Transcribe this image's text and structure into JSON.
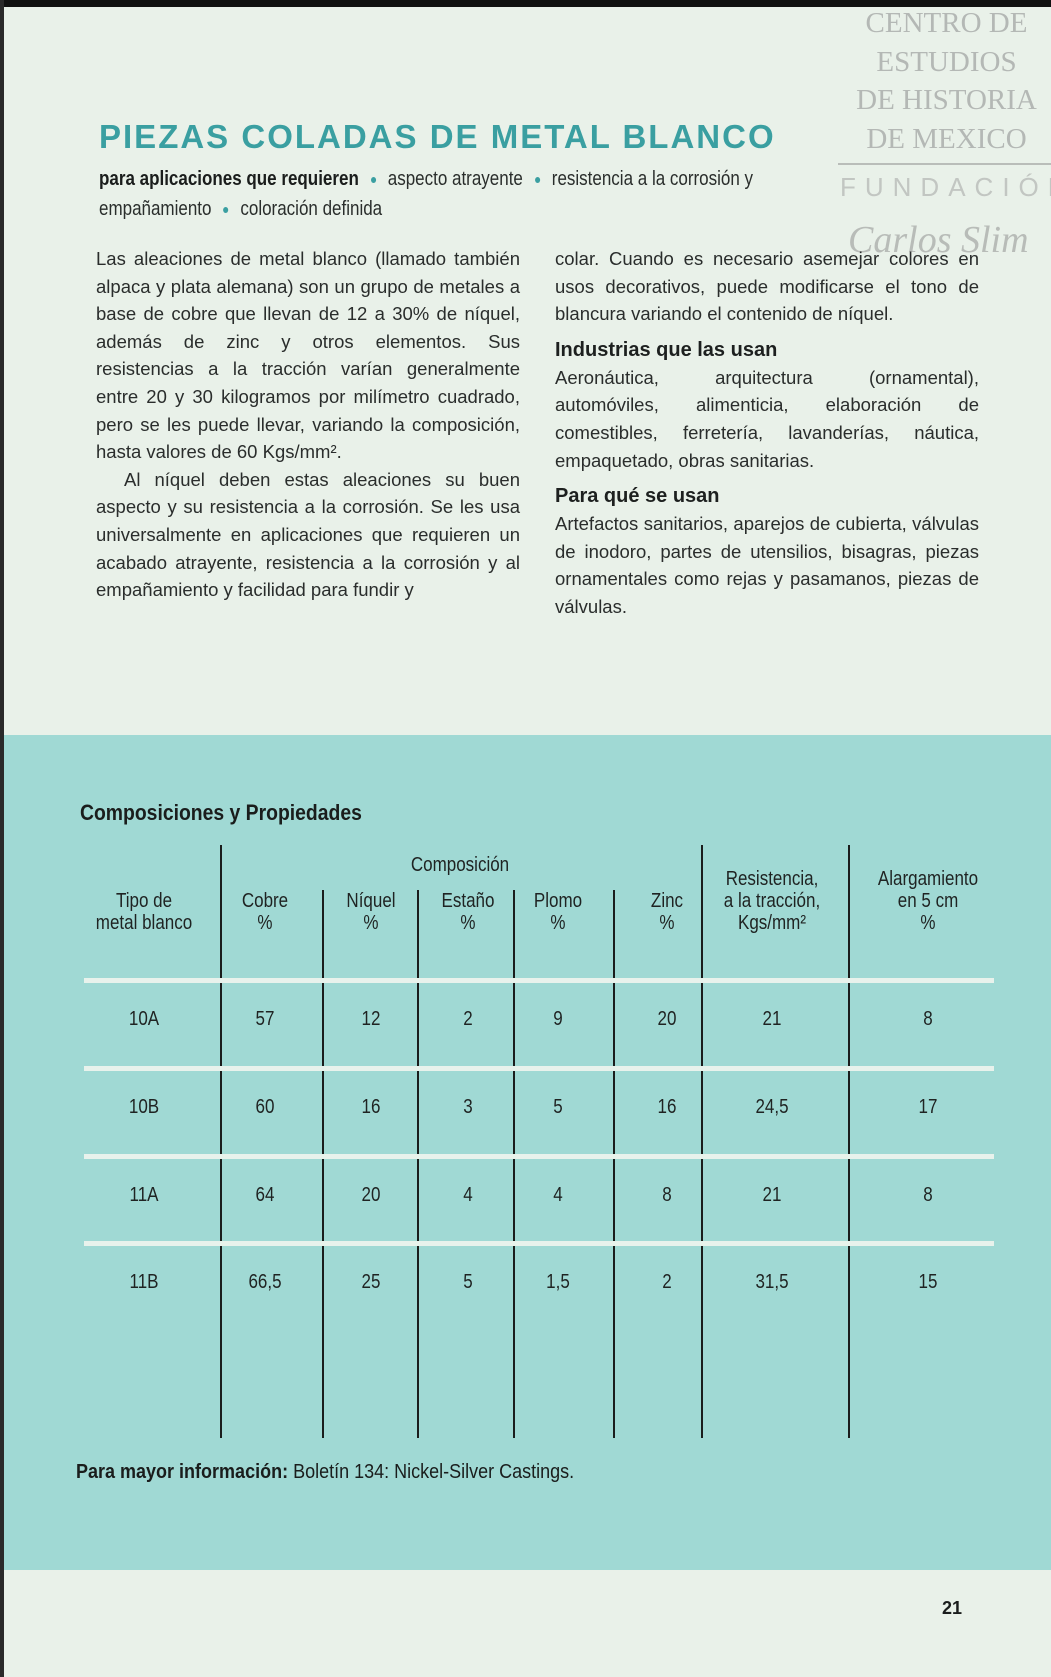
{
  "watermark": {
    "lines": [
      "CENTRO DE",
      "ESTUDIOS",
      "DE HISTORIA",
      "DE MEXICO"
    ],
    "fundacion": "FUNDACIÓN",
    "signature": "Carlos Slim"
  },
  "header": {
    "title": "PIEZAS COLADAS DE METAL BLANCO",
    "subtitle_lead": "para aplicaciones que requieren",
    "subtitle_items": [
      "aspecto atrayente",
      "resistencia a la corrosión y",
      "empañamiento",
      "coloración definida"
    ]
  },
  "body": {
    "left_p1": "Las aleaciones de metal blanco (llamado también alpaca y plata alemana) son un grupo de metales a base de cobre que llevan de 12 a 30% de níquel, además de zinc y otros elementos. Sus resistencias a la tracción varían generalmente entre 20 y 30 kilogramos por milímetro cuadrado, pero se les puede llevar, variando la composición, hasta valores de 60 Kgs/mm².",
    "left_p2": "Al níquel deben estas aleaciones su buen aspecto y su resistencia a la corrosión. Se les usa universalmente en aplicaciones que requieren un acabado atrayente, resistencia a la corrosión y al empañamiento y facilidad para fundir y",
    "right_p1": "colar. Cuando es necesario asemejar colores en usos decorativos, puede modificarse el tono de blancura variando el contenido de níquel.",
    "industries_heading": "Industrias que las usan",
    "industries_text": "Aeronáutica, arquitectura (ornamental), automóviles, alimenticia, elaboración de comestibles, ferretería, lavanderías, náutica, empaquetado, obras sanitarias.",
    "uses_heading": "Para qué se usan",
    "uses_text": "Artefactos sanitarios, aparejos de cubierta, válvulas de inodoro, partes de utensilios, bisagras, piezas ornamentales como rejas y pasamanos, piezas de válvulas."
  },
  "table": {
    "title": "Composiciones y Propiedades",
    "group_header": "Composición",
    "columns": [
      [
        "Tipo de",
        "metal blanco"
      ],
      [
        "Cobre",
        "%"
      ],
      [
        "Níquel",
        "%"
      ],
      [
        "Estaño",
        "%"
      ],
      [
        "Plomo",
        "%"
      ],
      [
        "Zinc",
        "%"
      ],
      [
        "Resistencia,",
        "a la tracción,",
        "Kgs/mm²"
      ],
      [
        "Alargamiento",
        "en 5 cm",
        "%"
      ]
    ],
    "rows": [
      [
        "10A",
        "57",
        "12",
        "2",
        "9",
        "20",
        "21",
        "8"
      ],
      [
        "10B",
        "60",
        "16",
        "3",
        "5",
        "16",
        "24,5",
        "17"
      ],
      [
        "11A",
        "64",
        "20",
        "4",
        "4",
        "8",
        "21",
        "8"
      ],
      [
        "11B",
        "66,5",
        "25",
        "5",
        "1,5",
        "2",
        "31,5",
        "15"
      ]
    ]
  },
  "footer": {
    "note_label": "Para mayor información:",
    "note_text": " Boletín 134: Nickel-Silver Castings.",
    "page_number": "21"
  },
  "colors": {
    "accent_teal": "#3a9fa1",
    "band": "#a0d9d4",
    "paper": "#e9f1e9"
  }
}
